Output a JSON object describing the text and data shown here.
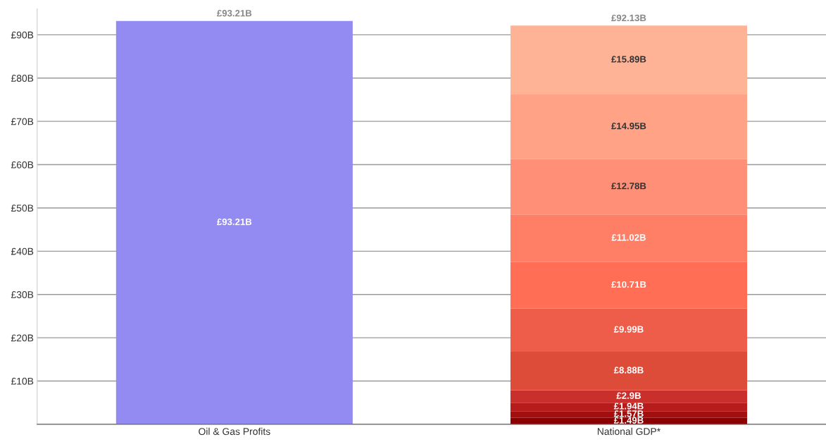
{
  "chart_data": {
    "type": "bar",
    "stacked": true,
    "categories": [
      "Oil & Gas Profits",
      "National GDP*"
    ],
    "series": [
      {
        "color": "#938bf2",
        "values": [
          93.21,
          null
        ],
        "value_labels": [
          "£93.21B",
          null
        ]
      },
      {
        "color": "#8b0000",
        "values": [
          null,
          1.49
        ],
        "value_labels": [
          null,
          "£1.49B"
        ]
      },
      {
        "color": "#a30f0f",
        "values": [
          null,
          1.57
        ],
        "value_labels": [
          null,
          "£1.57B"
        ]
      },
      {
        "color": "#b71c1c",
        "values": [
          null,
          1.94
        ],
        "value_labels": [
          null,
          "£1.94B"
        ]
      },
      {
        "color": "#c9302c",
        "values": [
          null,
          2.9
        ],
        "value_labels": [
          null,
          "£2.9B"
        ]
      },
      {
        "color": "#dd4b39",
        "values": [
          null,
          8.88
        ],
        "value_labels": [
          null,
          "£8.88B"
        ]
      },
      {
        "color": "#ee5c4a",
        "values": [
          null,
          9.99
        ],
        "value_labels": [
          null,
          "£9.99B"
        ]
      },
      {
        "color": "#ff6e55",
        "values": [
          null,
          10.71
        ],
        "value_labels": [
          null,
          "£10.71B"
        ]
      },
      {
        "color": "#ff7f66",
        "values": [
          null,
          11.02
        ],
        "value_labels": [
          null,
          "£11.02B"
        ]
      },
      {
        "color": "#ff9077",
        "values": [
          null,
          12.78
        ],
        "value_labels": [
          null,
          "£12.78B"
        ]
      },
      {
        "color": "#ffa286",
        "values": [
          null,
          14.95
        ],
        "value_labels": [
          null,
          "£14.95B"
        ]
      },
      {
        "color": "#ffb396",
        "values": [
          null,
          15.89
        ],
        "value_labels": [
          null,
          "£15.89B"
        ]
      }
    ],
    "totals": [
      "£93.21B",
      "£92.13B"
    ],
    "ylim": [
      0,
      96
    ],
    "yticks": [
      {
        "value": 0,
        "label": null
      },
      {
        "value": 10,
        "label": "£10B"
      },
      {
        "value": 20,
        "label": "£20B"
      },
      {
        "value": 30,
        "label": "£30B"
      },
      {
        "value": 40,
        "label": "£40B"
      },
      {
        "value": 50,
        "label": "£50B"
      },
      {
        "value": 60,
        "label": "£60B"
      },
      {
        "value": 70,
        "label": "£70B"
      },
      {
        "value": 80,
        "label": "£80B"
      },
      {
        "value": 90,
        "label": "£90B"
      }
    ],
    "grid": "y"
  }
}
